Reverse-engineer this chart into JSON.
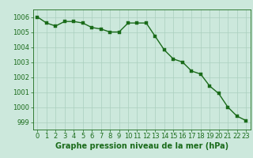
{
  "x": [
    0,
    1,
    2,
    3,
    4,
    5,
    6,
    7,
    8,
    9,
    10,
    11,
    12,
    13,
    14,
    15,
    16,
    17,
    18,
    19,
    20,
    21,
    22,
    23
  ],
  "y": [
    1006.0,
    1005.6,
    1005.4,
    1005.7,
    1005.7,
    1005.6,
    1005.3,
    1005.2,
    1005.0,
    1005.0,
    1005.6,
    1005.6,
    1005.6,
    1004.7,
    1003.8,
    1003.2,
    1003.0,
    1002.4,
    1002.2,
    1001.4,
    1000.9,
    1000.0,
    999.4,
    999.1
  ],
  "line_color": "#1a6b1a",
  "marker_color": "#1a6b1a",
  "bg_color": "#cce8dc",
  "grid_color": "#aacfbe",
  "xlabel": "Graphe pression niveau de la mer (hPa)",
  "ylim": [
    998.5,
    1006.5
  ],
  "xlim": [
    -0.5,
    23.5
  ],
  "yticks": [
    999,
    1000,
    1001,
    1002,
    1003,
    1004,
    1005,
    1006
  ],
  "xticks": [
    0,
    1,
    2,
    3,
    4,
    5,
    6,
    7,
    8,
    9,
    10,
    11,
    12,
    13,
    14,
    15,
    16,
    17,
    18,
    19,
    20,
    21,
    22,
    23
  ],
  "font_color": "#1a6b1a",
  "tick_fontsize": 6,
  "xlabel_fontsize": 7,
  "linewidth": 1.0,
  "markersize": 2.5
}
